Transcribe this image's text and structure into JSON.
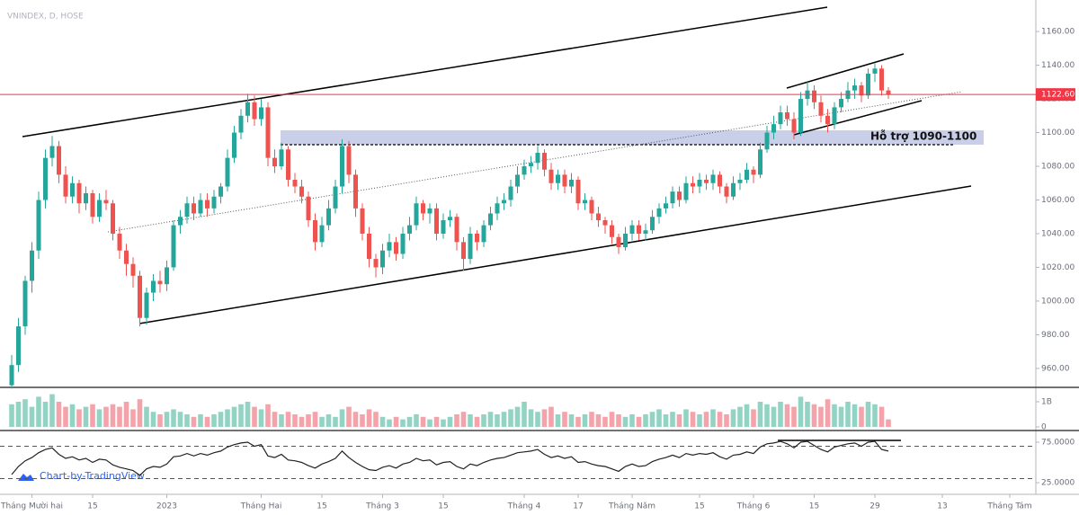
{
  "chart_data": {
    "type": "candlestick",
    "title": "VNINDEX, D, HOSE",
    "annotation": "Hỗ trợ 1090-1100",
    "watermark": "Chart-by-TradingView",
    "up_color": "#26a69a",
    "down_color": "#ef5350",
    "ylim": [
      949.3,
      1178.7
    ],
    "yticks": [
      {
        "value": 960,
        "label": "960.00"
      },
      {
        "value": 980,
        "label": "980.00"
      },
      {
        "value": 1000,
        "label": "1000.00"
      },
      {
        "value": 1020,
        "label": "1020.00"
      },
      {
        "value": 1040,
        "label": "1040.00"
      },
      {
        "value": 1060,
        "label": "1060.00"
      },
      {
        "value": 1080,
        "label": "1080.00"
      },
      {
        "value": 1100,
        "label": "1100.00"
      },
      {
        "value": 1120,
        "label": "1120.00"
      },
      {
        "value": 1140,
        "label": "1140.00"
      },
      {
        "value": 1160,
        "label": "1160.00"
      }
    ],
    "last_price": {
      "value": 1122.6,
      "label": "1122.60",
      "color": "#f23645"
    },
    "xticks": [
      {
        "value": 3,
        "label": "Tháng Mười hai"
      },
      {
        "value": 12,
        "label": "15"
      },
      {
        "value": 23,
        "label": "2023"
      },
      {
        "value": 37,
        "label": "Tháng Hai"
      },
      {
        "value": 46,
        "label": "15"
      },
      {
        "value": 55,
        "label": "Tháng 3"
      },
      {
        "value": 64,
        "label": "15"
      },
      {
        "value": 76,
        "label": "Tháng 4"
      },
      {
        "value": 84,
        "label": "17"
      },
      {
        "value": 92,
        "label": "Tháng Năm"
      },
      {
        "value": 102,
        "label": "15"
      },
      {
        "value": 110,
        "label": "Tháng 6"
      },
      {
        "value": 119,
        "label": "15"
      },
      {
        "value": 128,
        "label": "29"
      },
      {
        "value": 138,
        "label": "13"
      },
      {
        "value": 148,
        "label": "Tháng Tám"
      }
    ],
    "candles": [
      [
        950,
        968,
        948,
        962
      ],
      [
        962,
        990,
        958,
        985
      ],
      [
        985,
        1015,
        980,
        1012
      ],
      [
        1012,
        1035,
        1005,
        1030
      ],
      [
        1030,
        1065,
        1025,
        1060
      ],
      [
        1060,
        1090,
        1055,
        1085
      ],
      [
        1085,
        1098,
        1080,
        1092
      ],
      [
        1092,
        1095,
        1070,
        1075
      ],
      [
        1075,
        1080,
        1058,
        1062
      ],
      [
        1062,
        1074,
        1058,
        1070
      ],
      [
        1070,
        1072,
        1052,
        1058
      ],
      [
        1058,
        1068,
        1054,
        1064
      ],
      [
        1064,
        1066,
        1046,
        1050
      ],
      [
        1050,
        1064,
        1047,
        1060
      ],
      [
        1060,
        1066,
        1054,
        1058
      ],
      [
        1058,
        1060,
        1036,
        1040
      ],
      [
        1040,
        1044,
        1025,
        1030
      ],
      [
        1030,
        1034,
        1015,
        1022
      ],
      [
        1022,
        1026,
        1008,
        1015
      ],
      [
        1015,
        1018,
        985,
        990
      ],
      [
        990,
        1008,
        986,
        1005
      ],
      [
        1005,
        1016,
        1000,
        1012
      ],
      [
        1012,
        1018,
        1005,
        1010
      ],
      [
        1010,
        1024,
        1006,
        1020
      ],
      [
        1020,
        1048,
        1018,
        1045
      ],
      [
        1045,
        1054,
        1040,
        1050
      ],
      [
        1050,
        1062,
        1046,
        1058
      ],
      [
        1058,
        1062,
        1048,
        1052
      ],
      [
        1052,
        1064,
        1050,
        1060
      ],
      [
        1060,
        1064,
        1050,
        1055
      ],
      [
        1055,
        1066,
        1052,
        1062
      ],
      [
        1062,
        1070,
        1058,
        1068
      ],
      [
        1068,
        1090,
        1065,
        1085
      ],
      [
        1085,
        1104,
        1082,
        1100
      ],
      [
        1100,
        1114,
        1096,
        1110
      ],
      [
        1110,
        1123,
        1106,
        1118
      ],
      [
        1118,
        1122,
        1104,
        1108
      ],
      [
        1108,
        1120,
        1104,
        1115
      ],
      [
        1115,
        1118,
        1080,
        1085
      ],
      [
        1085,
        1090,
        1076,
        1080
      ],
      [
        1080,
        1094,
        1078,
        1090
      ],
      [
        1090,
        1092,
        1068,
        1072
      ],
      [
        1072,
        1076,
        1064,
        1068
      ],
      [
        1068,
        1072,
        1058,
        1062
      ],
      [
        1062,
        1065,
        1044,
        1048
      ],
      [
        1048,
        1052,
        1030,
        1035
      ],
      [
        1035,
        1050,
        1032,
        1045
      ],
      [
        1045,
        1060,
        1042,
        1055
      ],
      [
        1055,
        1072,
        1052,
        1068
      ],
      [
        1068,
        1096,
        1064,
        1092
      ],
      [
        1092,
        1095,
        1070,
        1075
      ],
      [
        1075,
        1078,
        1050,
        1055
      ],
      [
        1055,
        1058,
        1036,
        1040
      ],
      [
        1040,
        1044,
        1020,
        1025
      ],
      [
        1025,
        1028,
        1014,
        1020
      ],
      [
        1020,
        1034,
        1016,
        1030
      ],
      [
        1030,
        1040,
        1026,
        1035
      ],
      [
        1035,
        1038,
        1024,
        1028
      ],
      [
        1028,
        1044,
        1025,
        1040
      ],
      [
        1040,
        1050,
        1036,
        1045
      ],
      [
        1045,
        1062,
        1042,
        1058
      ],
      [
        1058,
        1060,
        1048,
        1052
      ],
      [
        1052,
        1058,
        1046,
        1055
      ],
      [
        1055,
        1058,
        1036,
        1040
      ],
      [
        1040,
        1052,
        1037,
        1048
      ],
      [
        1048,
        1054,
        1044,
        1050
      ],
      [
        1050,
        1052,
        1030,
        1035
      ],
      [
        1035,
        1038,
        1018,
        1025
      ],
      [
        1025,
        1044,
        1022,
        1040
      ],
      [
        1040,
        1042,
        1030,
        1035
      ],
      [
        1035,
        1048,
        1032,
        1045
      ],
      [
        1045,
        1056,
        1042,
        1052
      ],
      [
        1052,
        1062,
        1048,
        1058
      ],
      [
        1058,
        1064,
        1054,
        1060
      ],
      [
        1060,
        1072,
        1056,
        1068
      ],
      [
        1068,
        1080,
        1064,
        1075
      ],
      [
        1075,
        1084,
        1072,
        1080
      ],
      [
        1080,
        1086,
        1076,
        1082
      ],
      [
        1082,
        1092,
        1078,
        1088
      ],
      [
        1088,
        1090,
        1074,
        1078
      ],
      [
        1078,
        1082,
        1066,
        1070
      ],
      [
        1070,
        1078,
        1066,
        1075
      ],
      [
        1075,
        1078,
        1064,
        1068
      ],
      [
        1068,
        1076,
        1064,
        1072
      ],
      [
        1072,
        1074,
        1054,
        1058
      ],
      [
        1058,
        1064,
        1054,
        1060
      ],
      [
        1060,
        1062,
        1048,
        1052
      ],
      [
        1052,
        1056,
        1044,
        1048
      ],
      [
        1048,
        1050,
        1040,
        1045
      ],
      [
        1045,
        1048,
        1034,
        1038
      ],
      [
        1038,
        1040,
        1028,
        1032
      ],
      [
        1032,
        1044,
        1030,
        1040
      ],
      [
        1040,
        1048,
        1036,
        1045
      ],
      [
        1045,
        1048,
        1036,
        1040
      ],
      [
        1040,
        1046,
        1036,
        1042
      ],
      [
        1042,
        1054,
        1040,
        1050
      ],
      [
        1050,
        1058,
        1046,
        1055
      ],
      [
        1055,
        1062,
        1052,
        1058
      ],
      [
        1058,
        1068,
        1055,
        1065
      ],
      [
        1065,
        1068,
        1056,
        1060
      ],
      [
        1060,
        1074,
        1058,
        1070
      ],
      [
        1070,
        1074,
        1064,
        1068
      ],
      [
        1068,
        1076,
        1064,
        1072
      ],
      [
        1072,
        1075,
        1066,
        1070
      ],
      [
        1070,
        1078,
        1066,
        1075
      ],
      [
        1075,
        1077,
        1064,
        1068
      ],
      [
        1068,
        1070,
        1058,
        1062
      ],
      [
        1062,
        1074,
        1060,
        1070
      ],
      [
        1070,
        1076,
        1066,
        1072
      ],
      [
        1072,
        1082,
        1070,
        1078
      ],
      [
        1078,
        1080,
        1070,
        1075
      ],
      [
        1075,
        1094,
        1073,
        1090
      ],
      [
        1090,
        1104,
        1088,
        1100
      ],
      [
        1100,
        1110,
        1096,
        1105
      ],
      [
        1105,
        1116,
        1102,
        1112
      ],
      [
        1112,
        1116,
        1104,
        1108
      ],
      [
        1108,
        1112,
        1096,
        1100
      ],
      [
        1100,
        1124,
        1098,
        1120
      ],
      [
        1120,
        1130,
        1116,
        1125
      ],
      [
        1125,
        1128,
        1114,
        1118
      ],
      [
        1118,
        1122,
        1106,
        1110
      ],
      [
        1110,
        1114,
        1100,
        1105
      ],
      [
        1105,
        1118,
        1102,
        1115
      ],
      [
        1115,
        1124,
        1112,
        1120
      ],
      [
        1120,
        1130,
        1118,
        1125
      ],
      [
        1125,
        1132,
        1120,
        1128
      ],
      [
        1128,
        1130,
        1118,
        1122
      ],
      [
        1122,
        1138,
        1120,
        1135
      ],
      [
        1135,
        1141,
        1130,
        1138
      ],
      [
        1138,
        1140,
        1122,
        1125
      ],
      [
        1125,
        1127,
        1120,
        1122.6
      ]
    ],
    "volume": {
      "up_color": "#92d3c4",
      "down_color": "#f5a3aa",
      "ylim": [
        0,
        1.5
      ],
      "yticks": [
        0,
        {
          "value": 1,
          "label": "1B"
        }
      ],
      "values": [
        0.9,
        1.0,
        1.1,
        0.8,
        1.2,
        1.0,
        1.3,
        1.0,
        0.8,
        0.9,
        0.7,
        0.8,
        0.9,
        0.7,
        0.8,
        0.9,
        0.8,
        1.0,
        0.7,
        1.1,
        0.8,
        0.6,
        0.5,
        0.6,
        0.7,
        0.6,
        0.5,
        0.4,
        0.5,
        0.4,
        0.5,
        0.6,
        0.7,
        0.8,
        0.9,
        1.0,
        0.8,
        0.7,
        0.9,
        0.6,
        0.5,
        0.6,
        0.5,
        0.4,
        0.5,
        0.6,
        0.4,
        0.5,
        0.4,
        0.7,
        0.8,
        0.6,
        0.5,
        0.7,
        0.6,
        0.4,
        0.3,
        0.4,
        0.3,
        0.4,
        0.5,
        0.4,
        0.3,
        0.4,
        0.3,
        0.4,
        0.5,
        0.6,
        0.5,
        0.4,
        0.5,
        0.6,
        0.5,
        0.6,
        0.7,
        0.8,
        1.0,
        0.7,
        0.6,
        0.7,
        0.8,
        0.5,
        0.6,
        0.5,
        0.4,
        0.5,
        0.6,
        0.5,
        0.4,
        0.6,
        0.5,
        0.4,
        0.5,
        0.4,
        0.5,
        0.6,
        0.7,
        0.5,
        0.6,
        0.5,
        0.7,
        0.6,
        0.5,
        0.6,
        0.7,
        0.6,
        0.5,
        0.7,
        0.8,
        0.9,
        0.7,
        1.0,
        0.9,
        0.8,
        1.0,
        0.9,
        0.8,
        1.2,
        1.0,
        0.9,
        0.8,
        1.1,
        0.9,
        0.8,
        1.0,
        0.9,
        0.8,
        1.0,
        0.9,
        0.8,
        0.3
      ]
    },
    "rsi": {
      "color": "#222222",
      "ylim": [
        12.8,
        87.2
      ],
      "yticks": [
        {
          "value": 75,
          "label": "75.0000"
        },
        {
          "value": 25,
          "label": "25.0000"
        }
      ],
      "levels": [
        70,
        30
      ],
      "values": [
        35,
        45,
        52,
        56,
        62,
        66,
        68,
        60,
        55,
        57,
        53,
        55,
        50,
        54,
        53,
        47,
        44,
        42,
        40,
        34,
        42,
        45,
        44,
        48,
        57,
        58,
        61,
        58,
        61,
        59,
        62,
        64,
        69,
        72,
        74,
        75,
        70,
        72,
        58,
        56,
        60,
        53,
        52,
        50,
        46,
        43,
        48,
        51,
        55,
        64,
        56,
        50,
        45,
        41,
        40,
        44,
        46,
        43,
        48,
        50,
        55,
        52,
        53,
        47,
        50,
        51,
        45,
        42,
        48,
        46,
        50,
        53,
        55,
        56,
        59,
        62,
        63,
        64,
        66,
        60,
        56,
        58,
        55,
        57,
        50,
        51,
        48,
        46,
        45,
        42,
        39,
        45,
        48,
        45,
        46,
        51,
        54,
        56,
        59,
        56,
        61,
        59,
        61,
        60,
        62,
        57,
        54,
        59,
        60,
        63,
        61,
        69,
        73,
        74,
        76,
        73,
        68,
        75,
        76,
        71,
        66,
        63,
        69,
        71,
        73,
        74,
        70,
        75,
        76,
        66,
        64
      ]
    }
  }
}
